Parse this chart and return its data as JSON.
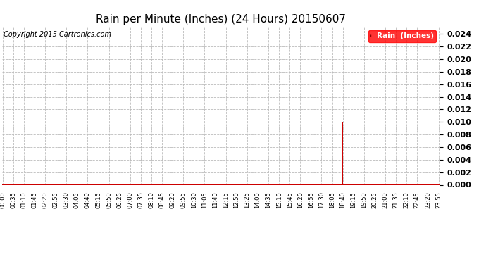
{
  "title": "Rain per Minute (Inches) (24 Hours) 20150607",
  "copyright_text": "Copyright 2015 Cartronics.com",
  "legend_label": "Rain  (Inches)",
  "bar_color": "#cc0000",
  "line_color": "#cc0000",
  "background_color": "#ffffff",
  "grid_color": "#bbbbbb",
  "ylim": [
    0,
    0.0252
  ],
  "yticks": [
    0.0,
    0.002,
    0.004,
    0.006,
    0.008,
    0.01,
    0.012,
    0.014,
    0.016,
    0.018,
    0.02,
    0.022,
    0.024
  ],
  "rain_events": [
    {
      "minute": 455,
      "value": 0.01
    },
    {
      "minute": 458,
      "value": 0.01
    },
    {
      "minute": 460,
      "value": 0.01
    },
    {
      "minute": 462,
      "value": 0.01
    },
    {
      "minute": 464,
      "value": 0.01
    },
    {
      "minute": 465,
      "value": 0.005
    },
    {
      "minute": 466,
      "value": 0.01
    },
    {
      "minute": 467,
      "value": 0.005
    },
    {
      "minute": 1120,
      "value": 0.01
    }
  ],
  "total_minutes": 1440,
  "xtick_label_interval": 35,
  "title_fontsize": 11,
  "copyright_fontsize": 7,
  "ytick_fontsize": 8,
  "xtick_fontsize": 6
}
